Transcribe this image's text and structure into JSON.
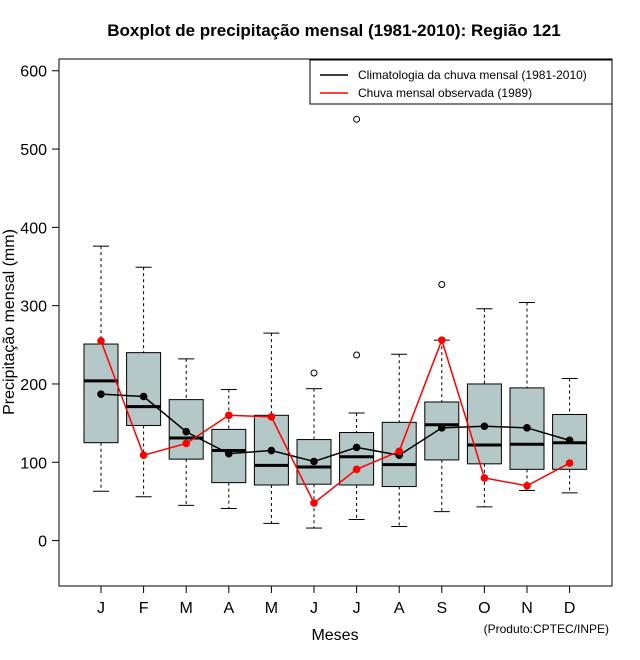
{
  "chart_data": {
    "type": "boxplot",
    "title": "Boxplot de precipitação mensal (1981-2010): Região 121",
    "xlabel": "Meses",
    "ylabel": "Precipitação mensal (mm)",
    "ylim": [
      -58,
      615
    ],
    "yticks": [
      0,
      100,
      200,
      300,
      400,
      500,
      600
    ],
    "categories": [
      "J",
      "F",
      "M",
      "A",
      "M",
      "J",
      "J",
      "A",
      "S",
      "O",
      "N",
      "D"
    ],
    "boxes": [
      {
        "whisker_low": 63,
        "q1": 125,
        "median": 204,
        "q3": 251,
        "whisker_high": 376,
        "outliers": []
      },
      {
        "whisker_low": 56,
        "q1": 147,
        "median": 171,
        "q3": 240,
        "whisker_high": 349,
        "outliers": []
      },
      {
        "whisker_low": 45,
        "q1": 104,
        "median": 131,
        "q3": 180,
        "whisker_high": 232,
        "outliers": []
      },
      {
        "whisker_low": 41,
        "q1": 74,
        "median": 115,
        "q3": 142,
        "whisker_high": 193,
        "outliers": []
      },
      {
        "whisker_low": 22,
        "q1": 71,
        "median": 96,
        "q3": 160,
        "whisker_high": 265,
        "outliers": []
      },
      {
        "whisker_low": 16,
        "q1": 72,
        "median": 94,
        "q3": 129,
        "whisker_high": 194,
        "outliers": [
          214
        ]
      },
      {
        "whisker_low": 27,
        "q1": 71,
        "median": 107,
        "q3": 138,
        "whisker_high": 163,
        "outliers": [
          237,
          538
        ]
      },
      {
        "whisker_low": 18,
        "q1": 69,
        "median": 97,
        "q3": 151,
        "whisker_high": 238,
        "outliers": []
      },
      {
        "whisker_low": 37,
        "q1": 103,
        "median": 148,
        "q3": 177,
        "whisker_high": 256,
        "outliers": [
          327
        ]
      },
      {
        "whisker_low": 43,
        "q1": 98,
        "median": 122,
        "q3": 200,
        "whisker_high": 296,
        "outliers": []
      },
      {
        "whisker_low": 64,
        "q1": 91,
        "median": 123,
        "q3": 195,
        "whisker_high": 304,
        "outliers": []
      },
      {
        "whisker_low": 61,
        "q1": 91,
        "median": 125,
        "q3": 161,
        "whisker_high": 207,
        "outliers": []
      }
    ],
    "series": [
      {
        "name": "Climatologia da chuva mensal (1981-2010)",
        "color": "#000000",
        "values": [
          187,
          184,
          139,
          111,
          115,
          101,
          119,
          109,
          144,
          146,
          144,
          128
        ]
      },
      {
        "name": "Chuva mensal observada (1989)",
        "color": "#ff0000",
        "values": [
          255,
          109,
          124,
          160,
          158,
          48,
          91,
          114,
          256,
          80,
          70,
          99
        ]
      }
    ],
    "legend_position": "top-right",
    "box_fill": "#b4c8c8",
    "credit": "(Produto:CPTEC/INPE)"
  }
}
